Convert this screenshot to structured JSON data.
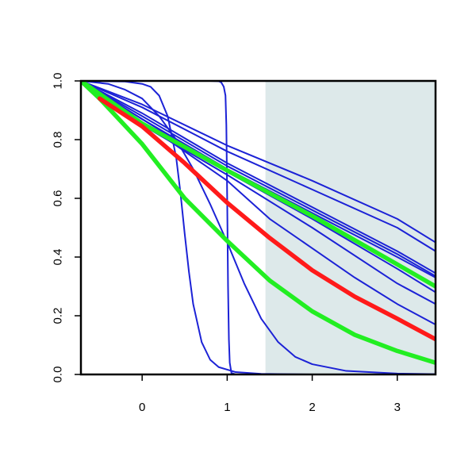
{
  "chart_data": {
    "type": "line",
    "title": "",
    "xlabel": "",
    "ylabel": "",
    "xlim": [
      -0.72,
      3.45
    ],
    "ylim": [
      0,
      1
    ],
    "x_ticks": [
      0,
      1,
      2,
      3
    ],
    "x_tick_labels": [
      "0",
      "1",
      "2",
      "3"
    ],
    "y_ticks": [
      0,
      0.2,
      0.4,
      0.6,
      0.8,
      1
    ],
    "y_tick_labels": [
      "0.0",
      "0.2",
      "0.4",
      "0.6",
      "0.8",
      "1.0"
    ],
    "grid": false,
    "legend": "none",
    "shaded_region": {
      "x_from": 1.45,
      "x_to": 3.45,
      "color": "#dde9ea"
    },
    "colors": {
      "blue": "#1c22d6",
      "red": "#ff1a1a",
      "green": "#22ee22"
    },
    "series": [
      {
        "color": "blue",
        "width": "thin",
        "points": [
          [
            -0.72,
            1.0
          ],
          [
            0.0,
            0.92
          ],
          [
            1.0,
            0.78
          ],
          [
            2.0,
            0.66
          ],
          [
            3.0,
            0.53
          ],
          [
            3.45,
            0.45
          ]
        ]
      },
      {
        "color": "blue",
        "width": "thin",
        "points": [
          [
            -0.72,
            1.0
          ],
          [
            0.0,
            0.91
          ],
          [
            1.0,
            0.76
          ],
          [
            2.0,
            0.63
          ],
          [
            3.0,
            0.5
          ],
          [
            3.45,
            0.42
          ]
        ]
      },
      {
        "color": "blue",
        "width": "thin",
        "points": [
          [
            -0.72,
            1.0
          ],
          [
            0.0,
            0.89
          ],
          [
            1.0,
            0.72
          ],
          [
            2.0,
            0.57
          ],
          [
            3.0,
            0.42
          ],
          [
            3.45,
            0.345
          ]
        ]
      },
      {
        "color": "blue",
        "width": "thin",
        "points": [
          [
            -0.72,
            1.0
          ],
          [
            0.0,
            0.88
          ],
          [
            1.0,
            0.71
          ],
          [
            2.0,
            0.56
          ],
          [
            3.0,
            0.41
          ],
          [
            3.45,
            0.335
          ]
        ]
      },
      {
        "color": "blue",
        "width": "thin",
        "points": [
          [
            -0.72,
            1.0
          ],
          [
            0.0,
            0.87
          ],
          [
            1.0,
            0.7
          ],
          [
            2.0,
            0.55
          ],
          [
            3.0,
            0.4
          ],
          [
            3.45,
            0.33
          ]
        ]
      },
      {
        "color": "blue",
        "width": "thin",
        "points": [
          [
            -0.72,
            1.0
          ],
          [
            0.0,
            0.87
          ],
          [
            1.0,
            0.69
          ],
          [
            2.0,
            0.53
          ],
          [
            3.0,
            0.36
          ],
          [
            3.45,
            0.28
          ]
        ]
      },
      {
        "color": "blue",
        "width": "thin",
        "points": [
          [
            -0.72,
            1.0
          ],
          [
            0.0,
            0.85
          ],
          [
            1.0,
            0.68
          ],
          [
            2.0,
            0.5
          ],
          [
            3.0,
            0.31
          ],
          [
            3.45,
            0.24
          ]
        ]
      },
      {
        "color": "blue",
        "width": "thin",
        "points": [
          [
            -0.72,
            1.0
          ],
          [
            0.0,
            0.86
          ],
          [
            0.5,
            0.76
          ],
          [
            1.0,
            0.66
          ],
          [
            1.5,
            0.53
          ],
          [
            2.0,
            0.43
          ],
          [
            2.5,
            0.33
          ],
          [
            3.0,
            0.24
          ],
          [
            3.45,
            0.17
          ]
        ]
      },
      {
        "color": "blue",
        "width": "thin",
        "points": [
          [
            -0.72,
            1.0
          ],
          [
            -0.4,
            0.99
          ],
          [
            -0.2,
            0.97
          ],
          [
            0.0,
            0.94
          ],
          [
            0.2,
            0.88
          ],
          [
            0.4,
            0.8
          ],
          [
            0.6,
            0.7
          ],
          [
            0.8,
            0.58
          ],
          [
            1.0,
            0.45
          ],
          [
            1.2,
            0.31
          ],
          [
            1.4,
            0.19
          ],
          [
            1.6,
            0.11
          ],
          [
            1.8,
            0.06
          ],
          [
            2.0,
            0.035
          ],
          [
            2.4,
            0.012
          ],
          [
            3.0,
            0.003
          ],
          [
            3.45,
            0.001
          ]
        ]
      },
      {
        "color": "blue",
        "width": "thin",
        "points": [
          [
            -0.72,
            1.0
          ],
          [
            -0.2,
            0.998
          ],
          [
            0.0,
            0.99
          ],
          [
            0.1,
            0.98
          ],
          [
            0.2,
            0.95
          ],
          [
            0.3,
            0.88
          ],
          [
            0.4,
            0.74
          ],
          [
            0.45,
            0.62
          ],
          [
            0.5,
            0.48
          ],
          [
            0.55,
            0.35
          ],
          [
            0.6,
            0.24
          ],
          [
            0.7,
            0.11
          ],
          [
            0.8,
            0.05
          ],
          [
            0.9,
            0.025
          ],
          [
            1.1,
            0.008
          ],
          [
            1.4,
            0.002
          ],
          [
            2.0,
            0.0
          ],
          [
            3.45,
            0.0
          ]
        ]
      },
      {
        "color": "blue",
        "width": "thin",
        "points": [
          [
            -0.72,
            1.0
          ],
          [
            0.8,
            1.0
          ],
          [
            0.9,
            0.999
          ],
          [
            0.93,
            0.995
          ],
          [
            0.96,
            0.98
          ],
          [
            0.98,
            0.95
          ],
          [
            0.99,
            0.85
          ],
          [
            1.0,
            0.6
          ],
          [
            1.01,
            0.3
          ],
          [
            1.02,
            0.12
          ],
          [
            1.03,
            0.04
          ],
          [
            1.05,
            0.005
          ],
          [
            1.1,
            0.0
          ],
          [
            3.45,
            0.0
          ]
        ]
      },
      {
        "color": "green",
        "width": "thick",
        "points": [
          [
            -0.72,
            1.0
          ],
          [
            0.0,
            0.855
          ],
          [
            1.0,
            0.695
          ],
          [
            2.0,
            0.54
          ],
          [
            3.0,
            0.375
          ],
          [
            3.45,
            0.3
          ]
        ]
      },
      {
        "color": "green",
        "width": "thick",
        "points": [
          [
            -0.72,
            1.0
          ],
          [
            -0.5,
            0.94
          ],
          [
            0.0,
            0.785
          ],
          [
            0.5,
            0.6
          ],
          [
            1.0,
            0.455
          ],
          [
            1.5,
            0.32
          ],
          [
            2.0,
            0.215
          ],
          [
            2.5,
            0.135
          ],
          [
            3.0,
            0.08
          ],
          [
            3.45,
            0.04
          ]
        ]
      },
      {
        "color": "red",
        "width": "thick",
        "points": [
          [
            -0.5,
            0.94
          ],
          [
            0.0,
            0.845
          ],
          [
            0.5,
            0.72
          ],
          [
            1.0,
            0.585
          ],
          [
            1.5,
            0.465
          ],
          [
            2.0,
            0.355
          ],
          [
            2.5,
            0.265
          ],
          [
            3.0,
            0.19
          ],
          [
            3.45,
            0.12
          ]
        ]
      }
    ]
  }
}
